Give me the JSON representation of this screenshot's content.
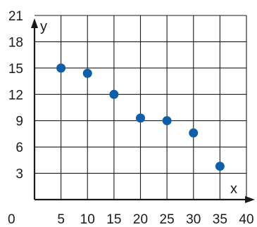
{
  "chart_data": {
    "type": "scatter",
    "xlabel": "x",
    "ylabel": "y",
    "xlim": [
      0,
      40
    ],
    "ylim": [
      0,
      21
    ],
    "x_ticks": [
      5,
      10,
      15,
      20,
      25,
      30,
      35,
      40
    ],
    "y_ticks": [
      3,
      6,
      9,
      12,
      15,
      18,
      21
    ],
    "origin_label": "0",
    "grid": true,
    "marker_color": "#0f5fa8",
    "points": [
      {
        "x": 5,
        "y": 15
      },
      {
        "x": 10,
        "y": 14.4
      },
      {
        "x": 15,
        "y": 12
      },
      {
        "x": 20,
        "y": 9.3
      },
      {
        "x": 25,
        "y": 9
      },
      {
        "x": 30,
        "y": 7.6
      },
      {
        "x": 35,
        "y": 3.8
      }
    ]
  }
}
